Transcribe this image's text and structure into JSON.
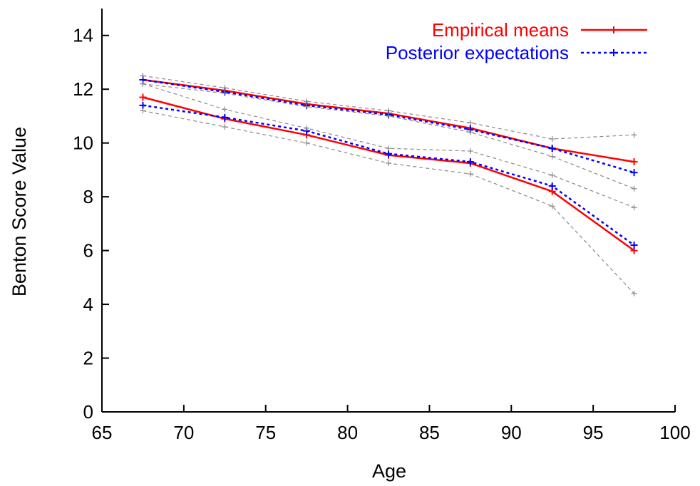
{
  "chart_data": {
    "type": "line",
    "xlabel": "Age",
    "ylabel": "Benton Score Value",
    "xlim": [
      65,
      100
    ],
    "ylim": [
      0,
      15
    ],
    "x_ticks": [
      65,
      70,
      75,
      80,
      85,
      90,
      95,
      100
    ],
    "y_ticks": [
      0,
      2,
      4,
      6,
      8,
      10,
      12,
      14
    ],
    "grid": false,
    "legend_position": "top-right",
    "x": [
      67.5,
      72.5,
      77.5,
      82.5,
      87.5,
      92.5,
      97.5
    ],
    "series": [
      {
        "name": "Empirical means",
        "color": "#ff0000",
        "style": "solid",
        "groups": [
          [
            12.35,
            11.95,
            11.45,
            11.1,
            10.55,
            9.8,
            9.3
          ],
          [
            11.7,
            10.9,
            10.3,
            9.55,
            9.25,
            8.2,
            6.0
          ]
        ]
      },
      {
        "name": "Posterior expectations",
        "color": "#0000ff",
        "style": "dotted",
        "groups": [
          [
            12.35,
            11.9,
            11.4,
            11.05,
            10.5,
            9.8,
            8.9
          ],
          [
            11.4,
            10.95,
            10.45,
            9.6,
            9.3,
            8.4,
            6.2
          ]
        ]
      },
      {
        "color": "#8a8a8a",
        "style": "dashed",
        "groups": [
          [
            12.5,
            12.05,
            11.55,
            11.2,
            10.75,
            10.15,
            10.3
          ],
          [
            12.2,
            11.85,
            11.35,
            11.0,
            10.4,
            9.5,
            8.3
          ],
          [
            12.2,
            11.25,
            10.55,
            9.8,
            9.7,
            8.8,
            7.6
          ],
          [
            11.2,
            10.6,
            10.0,
            9.25,
            8.85,
            7.65,
            4.4
          ]
        ]
      }
    ]
  }
}
